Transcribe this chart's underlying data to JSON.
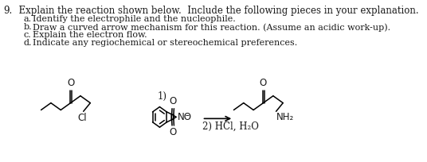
{
  "background": "#ffffff",
  "text_color": "#1a1a1a",
  "title_num": "9.",
  "title_rest": "  Explain the reaction shown below.  Include the following pieces in your explanation.",
  "items": [
    [
      "a.",
      "Identify the electrophile and the nucleophile."
    ],
    [
      "b.",
      "Draw a curved arrow mechanism for this reaction. (Assume an acidic work-up)."
    ],
    [
      "c.",
      "Explain the electron flow."
    ],
    [
      "d.",
      "Indicate any regiochemical or stereochemical preferences."
    ]
  ],
  "font_size_title": 8.5,
  "font_size_item": 8.0,
  "arrow_label_top": "1)",
  "arrow_label_bottom": "2) HCl, H",
  "arrow_label_bottom2": "O",
  "reactant_Cl": "Cl",
  "reagent_N": "N",
  "reagent_charge": "Θ",
  "reagent_O": "O",
  "product_O": "O",
  "product_NH2": "NH",
  "product_NH2_sub": "2"
}
